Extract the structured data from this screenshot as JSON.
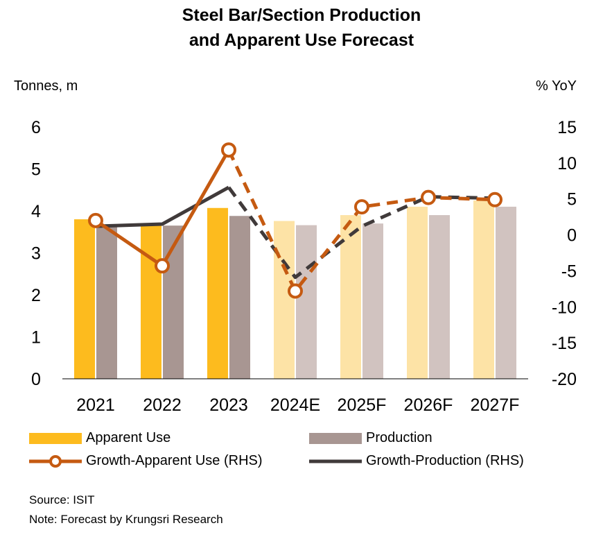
{
  "chart_data": {
    "type": "bar",
    "title": [
      "Steel Bar/Section Production",
      "and Apparent Use Forecast"
    ],
    "ylabel_left": "Tonnes, m",
    "ylabel_right": "% YoY",
    "ylim_left": [
      0,
      6
    ],
    "yticks_left": [
      "0",
      "1",
      "2",
      "3",
      "4",
      "5",
      "6"
    ],
    "ylim_right": [
      -20,
      15
    ],
    "yticks_right": [
      "-20",
      "-15",
      "-10",
      "-5",
      "0",
      "5",
      "10",
      "15"
    ],
    "categories": [
      "2021",
      "2022",
      "2023",
      "2024E",
      "2025F",
      "2026F",
      "2027F"
    ],
    "forecast_from_index": 3,
    "bar_series": [
      {
        "name": "Apparent Use",
        "values": [
          3.8,
          3.65,
          4.07,
          3.76,
          3.9,
          4.1,
          4.25
        ],
        "color": "#FDBB1E",
        "forecast_color": "#FDE3A6"
      },
      {
        "name": "Production",
        "values": [
          3.65,
          3.65,
          3.88,
          3.66,
          3.7,
          3.9,
          4.1
        ],
        "color": "#A89692",
        "forecast_color": "#D1C3C0"
      }
    ],
    "line_series": [
      {
        "name": "Growth-Apparent Use (RHS)",
        "values": [
          2.0,
          -4.3,
          11.8,
          -7.8,
          3.9,
          5.2,
          4.9
        ],
        "color": "#C55A11",
        "markers": true
      },
      {
        "name": "Growth-Production (RHS)",
        "values": [
          1.2,
          1.5,
          6.6,
          -5.9,
          1.2,
          5.3,
          5.1
        ],
        "color": "#403A3A",
        "markers": false
      }
    ]
  },
  "legend": {
    "apparent_use": "Apparent Use",
    "production": "Production",
    "growth_apparent": "Growth-Apparent Use (RHS)",
    "growth_production": "Growth-Production (RHS)"
  },
  "notes": {
    "source": "Source: ISIT",
    "note": "Note: Forecast by Krungsri Research"
  }
}
